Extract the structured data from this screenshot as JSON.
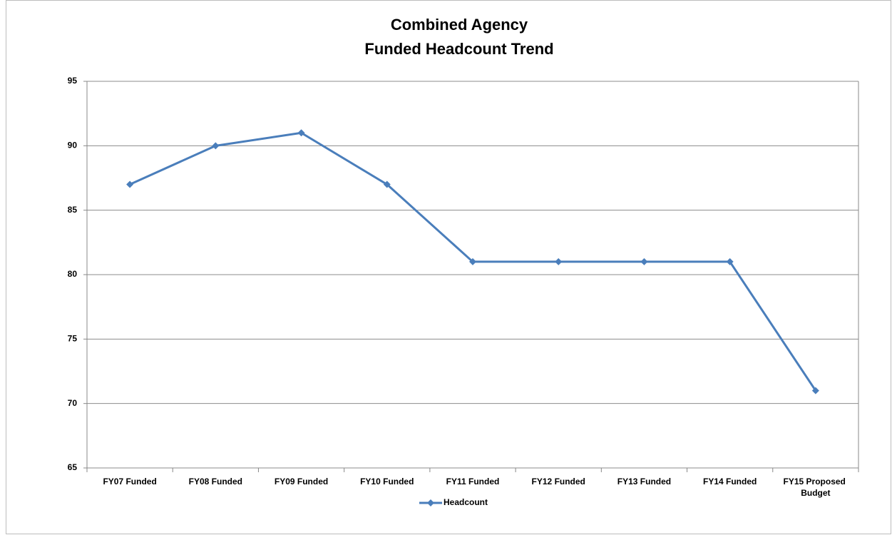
{
  "chart_data": {
    "type": "line",
    "title": [
      "Combined Agency",
      "Funded Headcount Trend"
    ],
    "categories": [
      "FY07 Funded",
      "FY08 Funded",
      "FY09 Funded",
      "FY10 Funded",
      "FY11 Funded",
      "FY12 Funded",
      "FY13 Funded",
      "FY14 Funded",
      "FY15 Proposed Budget"
    ],
    "series": [
      {
        "name": "Headcount",
        "color": "#4a7ebb",
        "values": [
          87,
          90,
          91,
          87,
          81,
          81,
          81,
          81,
          71
        ]
      }
    ],
    "ylim": [
      65,
      95
    ],
    "yticks": [
      65,
      70,
      75,
      80,
      85,
      90,
      95
    ],
    "grid": true,
    "legend": "bottom"
  }
}
